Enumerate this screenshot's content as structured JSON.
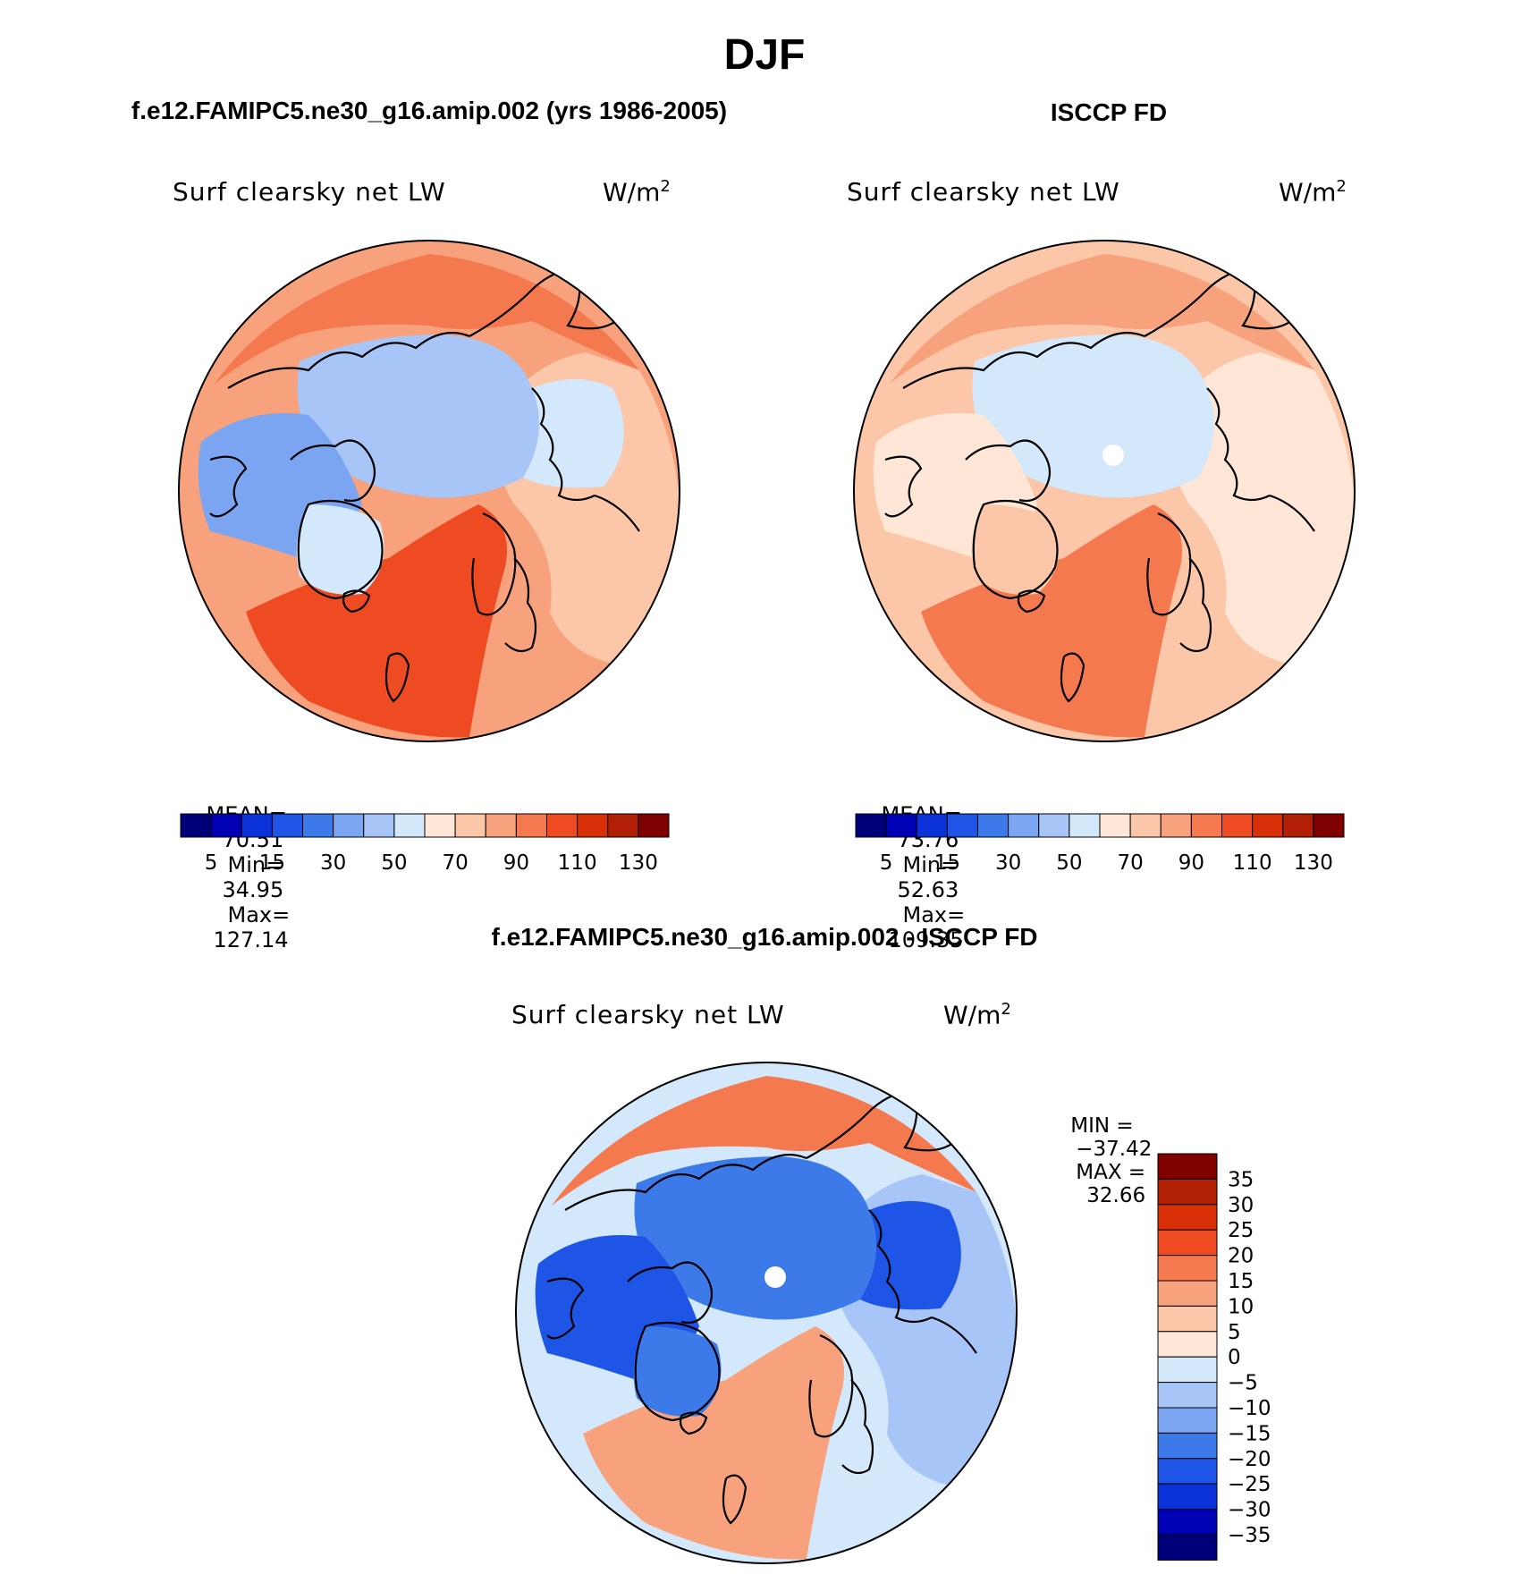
{
  "figure": {
    "season_title": "DJF",
    "difference_title": "f.e12.FAMIPC5.ne30_g16.amip.002 - ISCCP FD"
  },
  "colors": {
    "palette_abs": [
      "#00007a",
      "#0000b5",
      "#0a32d8",
      "#1e55e6",
      "#3c7aea",
      "#7ba5f0",
      "#a7c5f7",
      "#d4e8fb",
      "#ffe6d6",
      "#fcc7a9",
      "#f8a27d",
      "#f4794f",
      "#ef4b22",
      "#d92f06",
      "#b11f04",
      "#800000"
    ],
    "palette_diff": [
      "#00007a",
      "#0000b5",
      "#0a32d8",
      "#1e55e6",
      "#3c7aea",
      "#7ba5f0",
      "#a7c5f7",
      "#d4e8fb",
      "#ffe6d6",
      "#fcc7a9",
      "#f8a27d",
      "#f4794f",
      "#ef4b22",
      "#d92f06",
      "#b11f04",
      "#800000"
    ],
    "coast": "#000000",
    "pole_hole": "#ffffff"
  },
  "chart_data": [
    {
      "type": "heatmap",
      "projection": "north polar stereographic",
      "title": "f.e12.FAMIPC5.ne30_g16.amip.002 (yrs 1986-2005)",
      "variable_label": "Surf clearsky net LW",
      "units_base": "W/m",
      "units_exp": "2",
      "stats": {
        "mean_label": "MEAN=",
        "mean": "70.51",
        "min_label": "Min=",
        "min": "34.95",
        "max_label": "Max=",
        "max": "127.14"
      },
      "colorbar": {
        "orientation": "horizontal",
        "tick_labels": [
          "5",
          "15",
          "30",
          "50",
          "70",
          "90",
          "110",
          "130"
        ]
      },
      "regions": {
        "outer": "#f8a27d",
        "atlantic": "#ef4b22",
        "arctic_ocean": "#a7c5f7",
        "pacific_cap": "#f4794f",
        "eurasia": "#fcc7a9",
        "canada": "#7ba5f0",
        "greenland": "#d4e8fb",
        "siberia": "#d4e8fb"
      },
      "pole_hole": false
    },
    {
      "type": "heatmap",
      "projection": "north polar stereographic",
      "title": "ISCCP FD",
      "variable_label": "Surf clearsky net LW",
      "units_base": "W/m",
      "units_exp": "2",
      "stats": {
        "mean_label": "MEAN=",
        "mean": "73.76",
        "min_label": "Min=",
        "min": "52.63",
        "max_label": "Max=",
        "max": "109.35"
      },
      "colorbar": {
        "orientation": "horizontal",
        "tick_labels": [
          "5",
          "15",
          "30",
          "50",
          "70",
          "90",
          "110",
          "130"
        ]
      },
      "regions": {
        "outer": "#fcc7a9",
        "atlantic": "#f4794f",
        "arctic_ocean": "#d4e8fb",
        "pacific_cap": "#f8a27d",
        "eurasia": "#ffe6d6",
        "canada": "#ffe6d6",
        "greenland": "#fcc7a9",
        "siberia": "#ffe6d6"
      },
      "pole_hole": true
    },
    {
      "type": "heatmap",
      "projection": "north polar stereographic",
      "title": "",
      "variable_label": "Surf clearsky net LW",
      "units_base": "W/m",
      "units_exp": "2",
      "stats": {
        "min_label": "MIN =",
        "min": "−37.42",
        "max_label": "MAX =",
        "max": "32.66"
      },
      "colorbar": {
        "orientation": "vertical",
        "tick_labels": [
          "35",
          "30",
          "25",
          "20",
          "15",
          "10",
          "5",
          "0",
          "−5",
          "−10",
          "−15",
          "−20",
          "−25",
          "−30",
          "−35"
        ]
      },
      "regions": {
        "outer": "#d4e8fb",
        "atlantic": "#f8a27d",
        "arctic_ocean": "#3c7aea",
        "pacific_cap": "#f4794f",
        "eurasia": "#a7c5f7",
        "canada": "#1e55e6",
        "greenland": "#3c7aea",
        "siberia": "#1e55e6"
      },
      "pole_hole": true
    }
  ]
}
